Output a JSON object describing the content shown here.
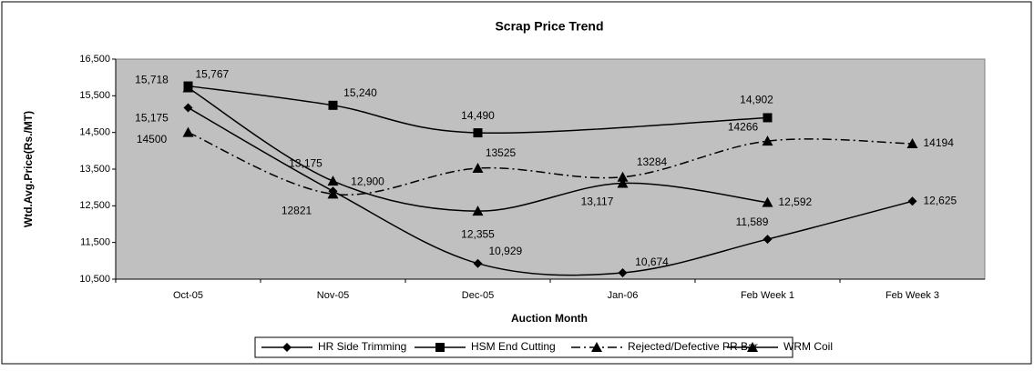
{
  "chart_data": {
    "type": "line",
    "title": "Scrap Price Trend",
    "x_label": "Auction Month",
    "y_label": "Wtd.Avg.Price(Rs./MT)",
    "categories": [
      "Oct-05",
      "Nov-05",
      "Dec-05",
      "Jan-06",
      "Feb Week 1",
      "Feb Week 3"
    ],
    "ylim": [
      10500,
      16500
    ],
    "yticks": [
      {
        "value": 10500,
        "label": "10,500"
      },
      {
        "value": 11500,
        "label": "11,500"
      },
      {
        "value": 12500,
        "label": "12,500"
      },
      {
        "value": 13500,
        "label": "13,500"
      },
      {
        "value": 14500,
        "label": "14,500"
      },
      {
        "value": 15500,
        "label": "15,500"
      },
      {
        "value": 16500,
        "label": "16,500"
      }
    ],
    "grid": false,
    "smooth": true,
    "span_gaps": true,
    "plot_background": "#c0c0c0",
    "legend": "bottom",
    "series": [
      {
        "name": "HR Side Trimming",
        "color": "#000000",
        "marker": "diamond",
        "dash": "solid",
        "values": [
          15175,
          12900,
          10929,
          10674,
          11589,
          12625
        ],
        "value_labels": [
          "15,175",
          "12,900",
          "10,929",
          "10,674",
          "11,589",
          "12,625"
        ]
      },
      {
        "name": "HSM End Cutting",
        "color": "#000000",
        "marker": "square",
        "dash": "solid",
        "values": [
          15767,
          15240,
          14490,
          null,
          14902,
          null
        ],
        "value_labels": [
          "15,767",
          "15,240",
          "14,490",
          null,
          "14,902",
          null
        ]
      },
      {
        "name": "Rejected/Defective PR Bar",
        "color": "#000000",
        "marker": "triangle",
        "dash": "dashdot",
        "values": [
          14500,
          12821,
          13525,
          13284,
          14266,
          14194
        ]
      },
      {
        "name": "WRM Coil",
        "color": "#000000",
        "marker": "triangle",
        "dash": "solid",
        "values": [
          15718,
          13175,
          12355,
          13117,
          12592,
          null
        ],
        "value_labels": [
          "15,718",
          "13,175",
          "12,355",
          "13,117",
          "12,592",
          null
        ]
      }
    ]
  }
}
